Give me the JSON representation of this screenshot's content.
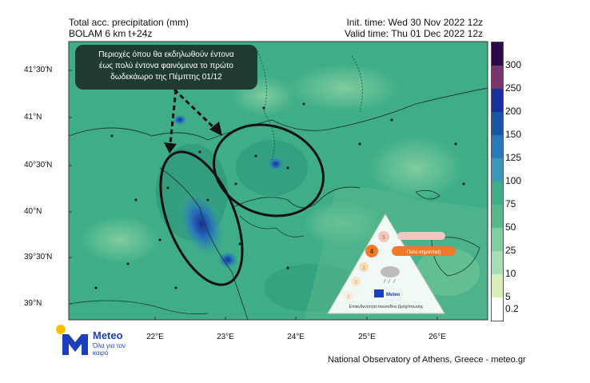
{
  "header": {
    "line1_left": "Total acc. precipitation (mm)",
    "line2_left": "BOLAM 6 km t+24z",
    "line1_right": "Init. time: Wed 30 Nov 2022 12z",
    "line2_right": "Valid time: Thu 01 Dec 2022 12z"
  },
  "map": {
    "lat_labels": [
      "41°30'N",
      "41°N",
      "40°30'N",
      "40°N",
      "39°30'N",
      "39°N"
    ],
    "lon_labels": [
      "22°E",
      "23°E",
      "24°E",
      "25°E",
      "26°E"
    ],
    "colors": {
      "land_green": "#3fae88",
      "light_green": "#6cc39c",
      "blue_mid": "#2a78b8",
      "blue_dark": "#1a4aa0"
    }
  },
  "callout": {
    "line1": "Περιοχές όπου θα εκδηλωθούν έντονα",
    "line2": "έως πολύ έντονα φαινόμενα το πρώτο",
    "line3": "δωδεκάωρο της Πέμπτης  01/12"
  },
  "colorbar": {
    "labels": [
      "300",
      "250",
      "200",
      "150",
      "125",
      "100",
      "75",
      "50",
      "25",
      "10",
      "5",
      "0.2"
    ],
    "colors": [
      "#2b0a4a",
      "#7a3470",
      "#1a2f9a",
      "#1c55a8",
      "#2a78b8",
      "#3c98b6",
      "#3fae88",
      "#58b88c",
      "#7fcc9e",
      "#a7dcb4",
      "#d8eebc",
      "#ffffff"
    ]
  },
  "warning_triangle": {
    "level_current": "4",
    "level_label": "Πολύ σημαντική",
    "caption_line1": "Επικινδυνότητα επεισοδίου βροχόπτωσης",
    "logo_word": "Meteo",
    "levels": [
      "5",
      "4",
      "3",
      "2",
      "1"
    ]
  },
  "logo": {
    "word": "Meteo",
    "tagline": "Όλα για τον καιρό",
    "colors": {
      "blue": "#1a3fb8",
      "sun": "#f6c000"
    }
  },
  "footer": "National Observatory of Athens, Greece - meteo.gr"
}
